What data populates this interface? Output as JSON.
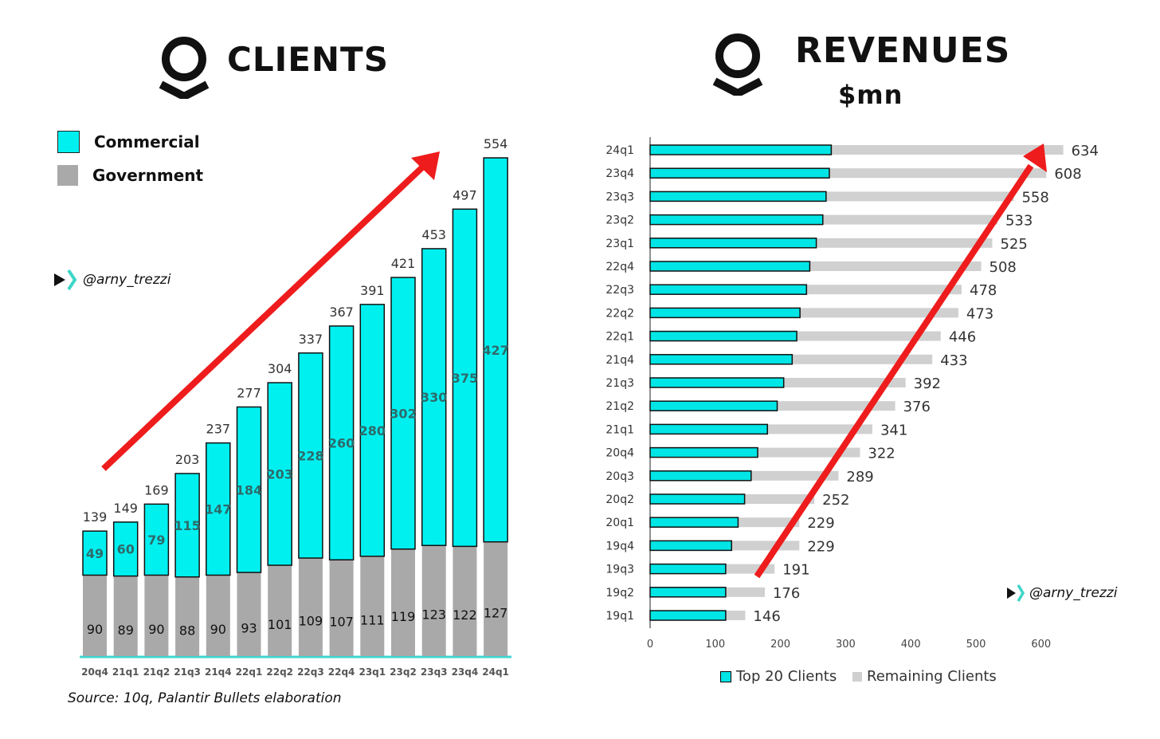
{
  "clients_panel": {
    "title": "CLIENTS",
    "legend": [
      {
        "label": "Commercial",
        "color": "#00f0f0"
      },
      {
        "label": "Government",
        "color": "#a9a9a9"
      }
    ],
    "handle": "@arny_trezzi",
    "source": "Source: 10q, Palantir Bullets elaboration"
  },
  "revenues_panel": {
    "title": "REVENUES",
    "subtitle": "$mn",
    "handle": "@arny_trezzi",
    "legend": [
      {
        "label": "Top 20 Clients",
        "color": "#00e5e5"
      },
      {
        "label": "Remaining Clients",
        "color": "#d0d0d0"
      }
    ]
  },
  "chart_data": [
    {
      "type": "bar",
      "stacked": true,
      "title": "CLIENTS",
      "categories": [
        "20q4",
        "21q1",
        "21q2",
        "21q3",
        "21q4",
        "22q1",
        "22q2",
        "22q3",
        "22q4",
        "23q1",
        "23q2",
        "23q3",
        "23q4",
        "24q1"
      ],
      "series": [
        {
          "name": "Government",
          "color": "#a9a9a9",
          "values": [
            90,
            89,
            90,
            88,
            90,
            93,
            101,
            109,
            107,
            111,
            119,
            123,
            122,
            127
          ]
        },
        {
          "name": "Commercial",
          "color": "#00f0f0",
          "values": [
            49,
            60,
            79,
            115,
            147,
            184,
            203,
            228,
            260,
            280,
            302,
            330,
            375,
            427
          ]
        }
      ],
      "totals": [
        139,
        149,
        169,
        203,
        237,
        277,
        304,
        337,
        367,
        391,
        421,
        453,
        497,
        554
      ],
      "ylim": [
        0,
        554
      ],
      "grid": false,
      "legend_position": "top-left",
      "annotation": "red upward arrow"
    },
    {
      "type": "bar",
      "orientation": "horizontal",
      "stacked": true,
      "title": "REVENUES",
      "subtitle": "$mn",
      "categories": [
        "24q1",
        "23q4",
        "23q3",
        "23q2",
        "23q1",
        "22q4",
        "22q3",
        "22q2",
        "22q1",
        "21q4",
        "21q3",
        "21q2",
        "21q1",
        "20q4",
        "20q3",
        "20q2",
        "20q1",
        "19q4",
        "19q3",
        "19q2",
        "19q1"
      ],
      "series": [
        {
          "name": "Top 20 Clients",
          "color": "#00e5e5",
          "values": [
            278,
            275,
            270,
            265,
            255,
            245,
            240,
            230,
            225,
            218,
            205,
            195,
            180,
            165,
            155,
            145,
            135,
            125,
            116,
            116,
            116
          ]
        },
        {
          "name": "Remaining Clients",
          "color": "#d0d0d0",
          "values": [
            356,
            333,
            288,
            268,
            270,
            263,
            238,
            243,
            221,
            215,
            187,
            181,
            161,
            157,
            134,
            107,
            94,
            104,
            75,
            60,
            30
          ]
        }
      ],
      "totals": [
        634,
        608,
        558,
        533,
        525,
        508,
        478,
        473,
        446,
        433,
        392,
        376,
        341,
        322,
        289,
        252,
        229,
        229,
        191,
        176,
        146
      ],
      "x_ticks": [
        0,
        100,
        200,
        300,
        400,
        500,
        600
      ],
      "xlim": [
        0,
        650
      ],
      "grid": false,
      "legend_position": "bottom",
      "annotation": "red upward arrow"
    }
  ]
}
